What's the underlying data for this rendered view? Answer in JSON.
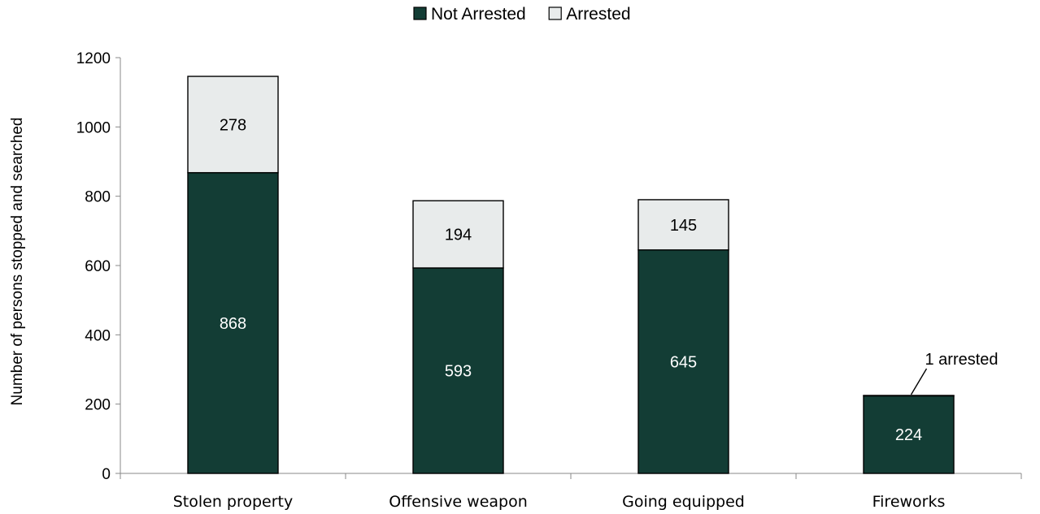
{
  "chart_data": {
    "type": "bar",
    "stacked": true,
    "categories": [
      "Stolen property",
      "Offensive weapon",
      "Going equipped",
      "Fireworks"
    ],
    "series": [
      {
        "name": "Not Arrested",
        "values": [
          868,
          593,
          645,
          224
        ],
        "color": "#133d35"
      },
      {
        "name": "Arrested",
        "values": [
          278,
          194,
          145,
          1
        ],
        "color": "#e8ebeb"
      }
    ],
    "data_labels": {
      "Not Arrested": [
        "868",
        "593",
        "645",
        "224"
      ],
      "Arrested": [
        "278",
        "194",
        "145",
        ""
      ]
    },
    "annotations": [
      {
        "text": "1 arrested",
        "category": "Fireworks",
        "series": "Arrested"
      }
    ],
    "ylabel": "Number of persons stopped and searched",
    "xlabel": "",
    "ylim": [
      0,
      1200
    ],
    "yticks": [
      0,
      200,
      400,
      600,
      800,
      1000,
      1200
    ],
    "legend_position": "top-center",
    "grid": false
  }
}
